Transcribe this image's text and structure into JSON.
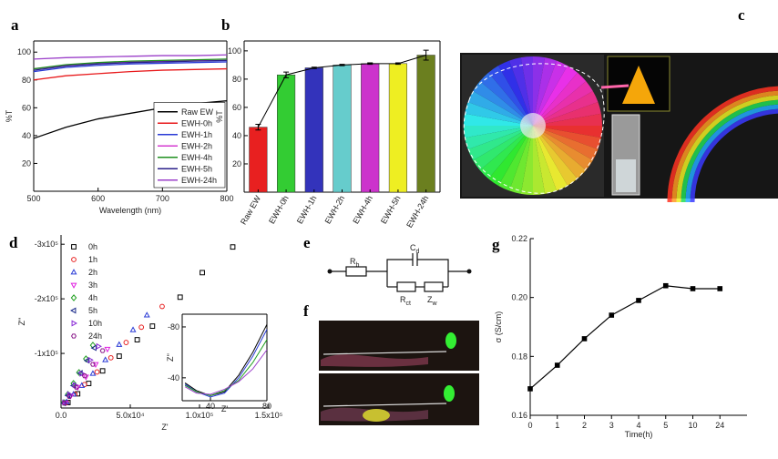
{
  "panel_labels": [
    "a",
    "b",
    "c",
    "d",
    "e",
    "f",
    "g"
  ],
  "chart_data": [
    {
      "type": "line",
      "x_label": "Wavelength (nm)",
      "y_label": "%T",
      "x": [
        500,
        550,
        600,
        650,
        700,
        750,
        800
      ],
      "xlim": [
        500,
        800
      ],
      "xticks": [
        500,
        600,
        700,
        800
      ],
      "ylim": [
        0,
        108
      ],
      "yticks": [
        20,
        40,
        60,
        80,
        100
      ],
      "legend": "lower right",
      "series": [
        {
          "name": "Raw EW",
          "color": "#000000",
          "values": [
            38,
            46,
            52,
            56,
            60,
            63,
            65
          ]
        },
        {
          "name": "EWH-0h",
          "color": "#e8191b",
          "values": [
            80,
            83,
            84.5,
            86,
            87,
            87.5,
            88
          ]
        },
        {
          "name": "EWH-1h",
          "color": "#2a3bd6",
          "values": [
            86,
            89,
            90.5,
            91.5,
            92,
            92.5,
            93
          ]
        },
        {
          "name": "EWH-2h",
          "color": "#d43bd0",
          "values": [
            88,
            90.5,
            92,
            93,
            93.5,
            94,
            94
          ]
        },
        {
          "name": "EWH-4h",
          "color": "#1f8f1f",
          "values": [
            88,
            91,
            92.5,
            93.5,
            94,
            94.5,
            95
          ]
        },
        {
          "name": "EWH-5h",
          "color": "#2a1f8a",
          "values": [
            87,
            90,
            91.5,
            92.5,
            93,
            93.5,
            94
          ]
        },
        {
          "name": "EWH-24h",
          "color": "#9b3fc9",
          "values": [
            95,
            96,
            96.5,
            97,
            97.5,
            97.5,
            98
          ]
        }
      ]
    },
    {
      "type": "bar",
      "y_label": "%T",
      "categories": [
        "Raw EW",
        "EWH-0h",
        "EWH-1h",
        "EWH-2h",
        "EWH-4h",
        "EWH-5h",
        "EWH-24h"
      ],
      "values": [
        46,
        83,
        88,
        90,
        91,
        91,
        97
      ],
      "errors": [
        2,
        2,
        0.5,
        0.5,
        0.5,
        0.5,
        3.5
      ],
      "colors": [
        "#e82020",
        "#33cc33",
        "#3333bb",
        "#66cccc",
        "#cc33cc",
        "#eeee22",
        "#6b7f1f"
      ],
      "line_color": "#000000",
      "ylim": [
        0,
        107
      ],
      "yticks": [
        20,
        40,
        60,
        80,
        100
      ]
    },
    {
      "type": "scatter",
      "x_label": "Z'",
      "y_label": "Z''",
      "open_markers": true,
      "xlim": [
        0,
        150000
      ],
      "xticks": [
        {
          "value": 0,
          "label": "0.0"
        },
        {
          "value": 50000,
          "label": "5.0x10⁴"
        },
        {
          "value": 100000,
          "label": "1.0x10⁵"
        },
        {
          "value": 150000,
          "label": "1.5x10⁵"
        }
      ],
      "ylim": [
        0,
        -317000
      ],
      "yticks": [
        {
          "value": -100000,
          "label": "-1x10⁵"
        },
        {
          "value": -200000,
          "label": "-2x10⁵"
        },
        {
          "value": -300000,
          "label": "-3x10⁵"
        }
      ],
      "legend": "upper left",
      "series": [
        {
          "name": "0h",
          "color": "#000000",
          "marker": "square",
          "x": [
            5000,
            12000,
            20000,
            30000,
            42000,
            55000,
            66000,
            86000,
            102000,
            124000
          ],
          "values": [
            -10000,
            -26000,
            -45000,
            -68000,
            -95000,
            -125000,
            -150000,
            -203000,
            -248000,
            -295000
          ]
        },
        {
          "name": "1h",
          "color": "#e82020",
          "marker": "circle",
          "x": [
            4000,
            10000,
            17000,
            26000,
            36000,
            47000,
            58000,
            73000
          ],
          "values": [
            -10000,
            -25500,
            -43000,
            -66000,
            -92000,
            -120000,
            -148000,
            -186000
          ]
        },
        {
          "name": "2h",
          "color": "#2a3bd6",
          "marker": "triangle-up",
          "x": [
            4000,
            9000,
            15000,
            23000,
            32000,
            42000,
            52000,
            62000
          ],
          "values": [
            -11000,
            -25000,
            -41000,
            -63000,
            -88000,
            -116000,
            -143000,
            -170000
          ]
        },
        {
          "name": "3h",
          "color": "#e020e0",
          "marker": "triangle-down",
          "x": [
            3000,
            7000,
            12000,
            18000,
            25000,
            33500
          ],
          "values": [
            -9500,
            -22000,
            -38000,
            -57000,
            -80000,
            -108000
          ]
        },
        {
          "name": "4h",
          "color": "#1f9f1f",
          "marker": "diamond",
          "x": [
            2000,
            5000,
            9000,
            13000,
            18000,
            23000
          ],
          "values": [
            -10000,
            -25000,
            -45000,
            -65000,
            -90000,
            -115000
          ]
        },
        {
          "name": "5h",
          "color": "#1a2a8a",
          "marker": "triangle-left",
          "x": [
            2000,
            5000,
            9000,
            14000,
            19000,
            24000
          ],
          "values": [
            -9000,
            -23000,
            -41000,
            -64000,
            -87000,
            -110000
          ]
        },
        {
          "name": "10h",
          "color": "#8a2ad6",
          "marker": "triangle-right",
          "x": [
            2500,
            6000,
            10000,
            15000,
            21000,
            27000
          ],
          "values": [
            -10000,
            -25000,
            -42000,
            -63000,
            -88000,
            -113000
          ]
        },
        {
          "name": "24h",
          "color": "#8a1a8a",
          "marker": "hexagon",
          "x": [
            2500,
            6000,
            11000,
            17000,
            23000,
            30000
          ],
          "values": [
            -9000,
            -21000,
            -38000,
            -59000,
            -80000,
            -105000
          ]
        }
      ]
    },
    {
      "type": "line",
      "x_label": "Z'",
      "y_label": "Z''",
      "xlim": [
        20,
        80
      ],
      "xticks": [
        40,
        80
      ],
      "ylim": [
        -22,
        -90
      ],
      "yticks": [
        -40,
        -80
      ],
      "series": [
        {
          "color": "#000000",
          "x": [
            22,
            30,
            40,
            50,
            60,
            70,
            80
          ],
          "values": [
            -36,
            -30,
            -26,
            -29,
            -42,
            -60,
            -82
          ]
        },
        {
          "color": "#2a3bd6",
          "x": [
            22,
            30,
            40,
            50,
            60,
            70,
            80
          ],
          "values": [
            -35,
            -29,
            -25,
            -28,
            -40,
            -57,
            -78
          ]
        },
        {
          "color": "#1f9f1f",
          "x": [
            22,
            30,
            40,
            50,
            60,
            70,
            80
          ],
          "values": [
            -34,
            -29,
            -26,
            -30,
            -38,
            -52,
            -70
          ]
        },
        {
          "color": "#9b3fc9",
          "x": [
            22,
            30,
            40,
            50,
            60,
            70,
            80
          ],
          "values": [
            -33,
            -28,
            -27,
            -31,
            -37,
            -47,
            -62
          ]
        }
      ]
    },
    {
      "type": "line",
      "x_label": "Time(h)",
      "y_label": "σ (S/cm)",
      "categories": [
        "0",
        "1",
        "2",
        "3",
        "4",
        "5",
        "10",
        "24"
      ],
      "values": [
        0.169,
        0.177,
        0.186,
        0.194,
        0.199,
        0.204,
        0.203,
        0.203
      ],
      "color": "#000000",
      "marker": "square",
      "ylim": [
        0.16,
        0.22
      ],
      "yticks": [
        0.16,
        0.18,
        {
          "value": 0.2,
          "label": "0.20"
        },
        0.22
      ]
    }
  ],
  "circuit": {
    "labels": [
      {
        "text": "R",
        "sub": "b"
      },
      {
        "text": "C",
        "sub": "d"
      },
      {
        "text": "R",
        "sub": "ct"
      },
      {
        "text": "Z",
        "sub": "w"
      }
    ]
  }
}
